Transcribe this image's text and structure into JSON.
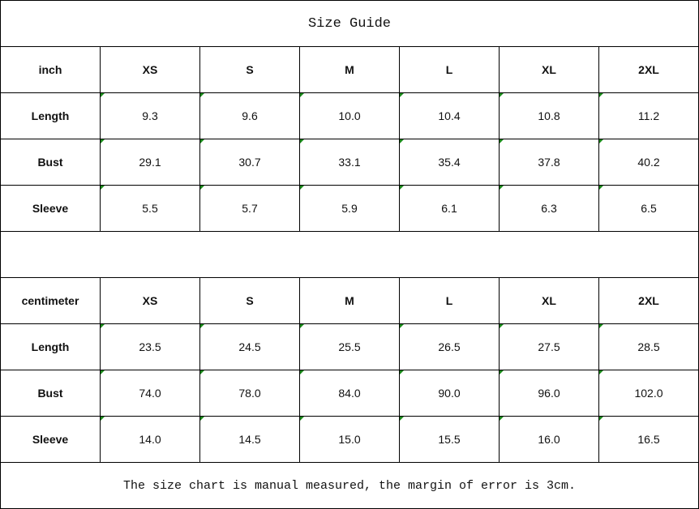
{
  "title": "Size Guide",
  "tables": [
    {
      "unit": "inch",
      "sizes": [
        "XS",
        "S",
        "M",
        "L",
        "XL",
        "2XL"
      ],
      "rows": [
        {
          "label": "Length",
          "values": [
            "9.3",
            "9.6",
            "10.0",
            "10.4",
            "10.8",
            "11.2"
          ]
        },
        {
          "label": "Bust",
          "values": [
            "29.1",
            "30.7",
            "33.1",
            "35.4",
            "37.8",
            "40.2"
          ]
        },
        {
          "label": "Sleeve",
          "values": [
            "5.5",
            "5.7",
            "5.9",
            "6.1",
            "6.3",
            "6.5"
          ]
        }
      ]
    },
    {
      "unit": "centimeter",
      "sizes": [
        "XS",
        "S",
        "M",
        "L",
        "XL",
        "2XL"
      ],
      "rows": [
        {
          "label": "Length",
          "values": [
            "23.5",
            "24.5",
            "25.5",
            "26.5",
            "27.5",
            "28.5"
          ]
        },
        {
          "label": "Bust",
          "values": [
            "74.0",
            "78.0",
            "84.0",
            "90.0",
            "96.0",
            "102.0"
          ]
        },
        {
          "label": "Sleeve",
          "values": [
            "14.0",
            "14.5",
            "15.0",
            "15.5",
            "16.0",
            "16.5"
          ]
        }
      ]
    }
  ],
  "note": "The size chart is manual measured, the margin of error is 3cm.",
  "colors": {
    "cell_marker": "#1a8a1a",
    "border": "#000000"
  }
}
